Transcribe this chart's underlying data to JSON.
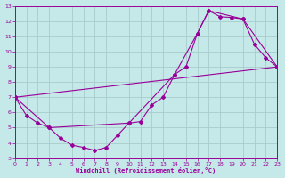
{
  "xlabel": "Windchill (Refroidissement éolien,°C)",
  "bg_color": "#c5e8e8",
  "grid_color": "#a8cccc",
  "line_color": "#990099",
  "xlim": [
    0,
    23
  ],
  "ylim": [
    3,
    13
  ],
  "xticks": [
    0,
    1,
    2,
    3,
    4,
    5,
    6,
    7,
    8,
    9,
    10,
    11,
    12,
    13,
    14,
    15,
    16,
    17,
    18,
    19,
    20,
    21,
    22,
    23
  ],
  "yticks": [
    3,
    4,
    5,
    6,
    7,
    8,
    9,
    10,
    11,
    12,
    13
  ],
  "curve1_x": [
    0,
    1,
    2,
    3,
    4,
    5,
    6,
    7,
    8,
    9,
    10,
    11,
    12,
    13,
    14,
    15,
    16,
    17,
    18,
    19,
    20,
    21,
    22,
    23
  ],
  "curve1_y": [
    7.0,
    5.8,
    5.3,
    5.0,
    4.3,
    3.85,
    3.7,
    3.5,
    3.7,
    4.5,
    5.3,
    5.4,
    6.5,
    7.0,
    8.5,
    9.0,
    11.2,
    12.7,
    12.3,
    12.25,
    12.15,
    10.5,
    9.6,
    9.0
  ],
  "curve2_x": [
    0,
    3,
    10,
    14,
    16,
    17,
    20,
    23
  ],
  "curve2_y": [
    7.0,
    5.0,
    5.3,
    8.5,
    11.2,
    12.7,
    12.15,
    9.0
  ],
  "curve3_x": [
    0,
    23
  ],
  "curve3_y": [
    7.0,
    9.0
  ],
  "lw": 0.8,
  "ms": 2.0
}
